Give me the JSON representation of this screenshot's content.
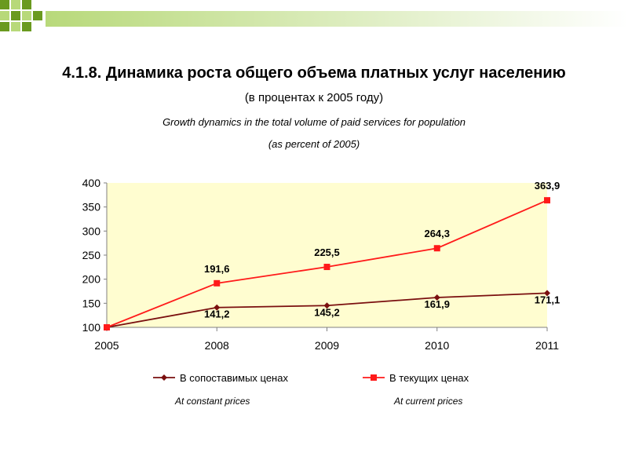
{
  "header": {
    "title": "4.1.8. Динамика роста общего объема платных услуг населению",
    "subtitle": "(в процентах к 2005 году)",
    "subtitle_en_line1": "Growth dynamics in the total volume of paid services for population",
    "subtitle_en_line2": "(as percent of 2005)"
  },
  "colors": {
    "plot_background": "#fffdd0",
    "constant_series": "#7a0f0f",
    "current_series": "#ff1a1a",
    "decoration_dark": "#6a9a1f",
    "decoration_light": "#b8d97a"
  },
  "chart_data": {
    "type": "line",
    "x": [
      "2005",
      "2008",
      "2009",
      "2010",
      "2011"
    ],
    "ylim": [
      100,
      400
    ],
    "yticks": [
      100,
      150,
      200,
      250,
      300,
      350,
      400
    ],
    "grid": false,
    "legend_position": "bottom",
    "series": [
      {
        "name": "В сопоставимых ценах",
        "name_en": "At constant prices",
        "marker": "diamond",
        "values": [
          100,
          141.2,
          145.2,
          161.9,
          171.1
        ],
        "labels": [
          "",
          "141,2",
          "145,2",
          "161,9",
          "171,1"
        ]
      },
      {
        "name": "В текущих ценах",
        "name_en": "At current prices",
        "marker": "square",
        "values": [
          100,
          191.6,
          225.5,
          264.3,
          363.9
        ],
        "labels": [
          "",
          "191,6",
          "225,5",
          "264,3",
          "363,9"
        ]
      }
    ]
  }
}
